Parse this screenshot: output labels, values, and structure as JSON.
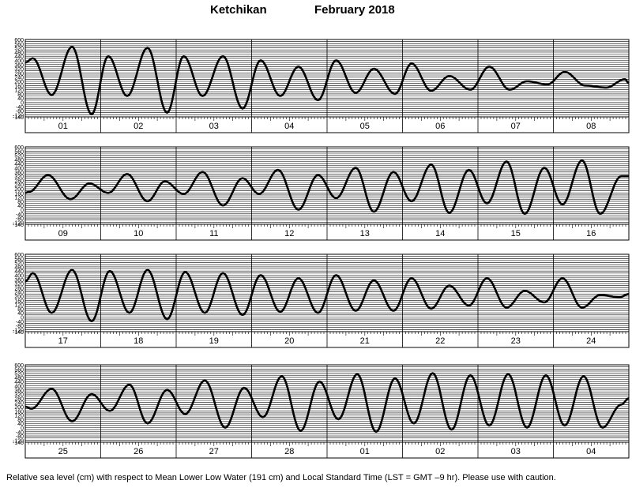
{
  "title": {
    "location": "Ketchikan",
    "period": "February   2018"
  },
  "caption": "Relative sea level (cm) with respect to Mean Lower Low Water (191 cm) and Local Standard Time (LST = GMT –9 hr). Please use with caution.",
  "chart_data": {
    "type": "line",
    "title": "Ketchikan February 2018",
    "ylabel": "Relative sea level (cm)",
    "ylim": [
      -140,
      600
    ],
    "y_ticks": [
      600,
      560,
      520,
      480,
      440,
      400,
      360,
      320,
      280,
      240,
      200,
      160,
      120,
      80,
      40,
      0,
      -40,
      -80,
      -120,
      -140
    ],
    "grid": true,
    "panels": [
      {
        "days": [
          "01",
          "02",
          "03",
          "04",
          "05",
          "06",
          "07",
          "08"
        ],
        "extremes": [
          [
            0.0,
            380
          ],
          [
            0.1,
            420
          ],
          [
            0.35,
            70
          ],
          [
            0.62,
            530
          ],
          [
            0.88,
            -115
          ],
          [
            1.1,
            440
          ],
          [
            1.35,
            60
          ],
          [
            1.62,
            520
          ],
          [
            1.88,
            -100
          ],
          [
            2.1,
            440
          ],
          [
            2.35,
            60
          ],
          [
            2.62,
            440
          ],
          [
            2.88,
            -60
          ],
          [
            3.12,
            400
          ],
          [
            3.38,
            60
          ],
          [
            3.62,
            340
          ],
          [
            3.88,
            20
          ],
          [
            4.12,
            400
          ],
          [
            4.38,
            90
          ],
          [
            4.62,
            320
          ],
          [
            4.9,
            80
          ],
          [
            5.12,
            370
          ],
          [
            5.38,
            110
          ],
          [
            5.62,
            250
          ],
          [
            5.9,
            120
          ],
          [
            6.15,
            340
          ],
          [
            6.42,
            120
          ],
          [
            6.65,
            200
          ],
          [
            6.92,
            170
          ],
          [
            7.15,
            290
          ],
          [
            7.42,
            160
          ],
          [
            7.7,
            140
          ],
          [
            7.95,
            220
          ],
          [
            8.0,
            180
          ]
        ]
      },
      {
        "days": [
          "09",
          "10",
          "11",
          "12",
          "13",
          "14",
          "15",
          "16"
        ],
        "extremes": [
          [
            0.0,
            160
          ],
          [
            0.05,
            170
          ],
          [
            0.3,
            330
          ],
          [
            0.6,
            100
          ],
          [
            0.85,
            250
          ],
          [
            1.1,
            160
          ],
          [
            1.35,
            340
          ],
          [
            1.62,
            80
          ],
          [
            1.85,
            270
          ],
          [
            2.1,
            150
          ],
          [
            2.35,
            360
          ],
          [
            2.62,
            40
          ],
          [
            2.88,
            300
          ],
          [
            3.1,
            150
          ],
          [
            3.35,
            380
          ],
          [
            3.62,
            0
          ],
          [
            3.88,
            330
          ],
          [
            4.12,
            110
          ],
          [
            4.38,
            400
          ],
          [
            4.62,
            -20
          ],
          [
            4.88,
            360
          ],
          [
            5.12,
            80
          ],
          [
            5.38,
            430
          ],
          [
            5.62,
            -30
          ],
          [
            5.88,
            380
          ],
          [
            6.12,
            60
          ],
          [
            6.38,
            460
          ],
          [
            6.62,
            -40
          ],
          [
            6.88,
            400
          ],
          [
            7.12,
            50
          ],
          [
            7.38,
            470
          ],
          [
            7.62,
            -40
          ],
          [
            7.9,
            320
          ],
          [
            8.0,
            320
          ]
        ]
      },
      {
        "days": [
          "17",
          "18",
          "19",
          "20",
          "21",
          "22",
          "23",
          "24"
        ],
        "extremes": [
          [
            0.0,
            340
          ],
          [
            0.1,
            420
          ],
          [
            0.35,
            40
          ],
          [
            0.62,
            450
          ],
          [
            0.88,
            -40
          ],
          [
            1.12,
            440
          ],
          [
            1.38,
            40
          ],
          [
            1.62,
            450
          ],
          [
            1.88,
            -20
          ],
          [
            2.12,
            430
          ],
          [
            2.38,
            40
          ],
          [
            2.62,
            420
          ],
          [
            2.88,
            20
          ],
          [
            3.12,
            400
          ],
          [
            3.38,
            50
          ],
          [
            3.62,
            370
          ],
          [
            3.88,
            40
          ],
          [
            4.12,
            400
          ],
          [
            4.38,
            60
          ],
          [
            4.62,
            350
          ],
          [
            4.88,
            60
          ],
          [
            5.12,
            370
          ],
          [
            5.38,
            80
          ],
          [
            5.62,
            300
          ],
          [
            5.88,
            110
          ],
          [
            6.12,
            370
          ],
          [
            6.38,
            90
          ],
          [
            6.62,
            250
          ],
          [
            6.88,
            140
          ],
          [
            7.12,
            370
          ],
          [
            7.38,
            90
          ],
          [
            7.62,
            210
          ],
          [
            7.88,
            190
          ],
          [
            8.0,
            220
          ]
        ]
      },
      {
        "days": [
          "25",
          "26",
          "27",
          "28",
          "01",
          "02",
          "03",
          "04"
        ],
        "extremes": [
          [
            0.0,
            200
          ],
          [
            0.08,
            180
          ],
          [
            0.35,
            370
          ],
          [
            0.62,
            60
          ],
          [
            0.88,
            320
          ],
          [
            1.12,
            160
          ],
          [
            1.38,
            410
          ],
          [
            1.62,
            40
          ],
          [
            1.88,
            360
          ],
          [
            2.12,
            130
          ],
          [
            2.38,
            450
          ],
          [
            2.65,
            0
          ],
          [
            2.9,
            380
          ],
          [
            3.15,
            100
          ],
          [
            3.4,
            490
          ],
          [
            3.65,
            -30
          ],
          [
            3.9,
            440
          ],
          [
            4.15,
            80
          ],
          [
            4.4,
            510
          ],
          [
            4.65,
            -40
          ],
          [
            4.9,
            470
          ],
          [
            5.15,
            40
          ],
          [
            5.4,
            520
          ],
          [
            5.65,
            -20
          ],
          [
            5.9,
            500
          ],
          [
            6.15,
            20
          ],
          [
            6.4,
            510
          ],
          [
            6.65,
            0
          ],
          [
            6.9,
            500
          ],
          [
            7.15,
            20
          ],
          [
            7.4,
            490
          ],
          [
            7.65,
            0
          ],
          [
            7.9,
            220
          ],
          [
            8.0,
            280
          ]
        ]
      }
    ]
  }
}
